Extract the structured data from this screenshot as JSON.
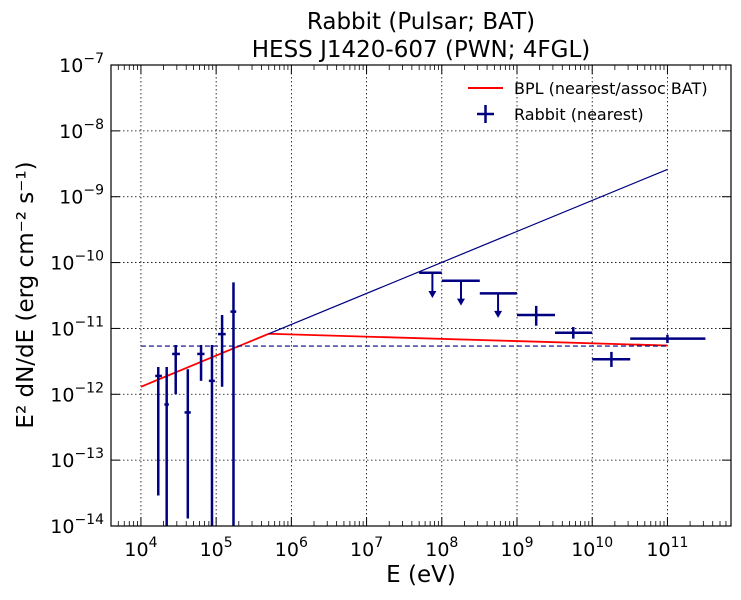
{
  "chart_data": {
    "type": "scatter",
    "title": [
      "Rabbit (Pulsar; BAT)",
      "HESS J1420-607 (PWN; 4FGL)"
    ],
    "xlabel": "E (eV)",
    "ylabel": "E² dN/dE (erg cm⁻² s⁻¹)",
    "x_scale": "log",
    "y_scale": "log",
    "xlim": [
      4000,
      700000000000
    ],
    "ylim": [
      1e-14,
      1e-07
    ],
    "x_ticks": [
      {
        "value": 10000,
        "base": "10",
        "exp": "4"
      },
      {
        "value": 100000,
        "base": "10",
        "exp": "5"
      },
      {
        "value": 1000000,
        "base": "10",
        "exp": "6"
      },
      {
        "value": 10000000,
        "base": "10",
        "exp": "7"
      },
      {
        "value": 100000000,
        "base": "10",
        "exp": "8"
      },
      {
        "value": 1000000000,
        "base": "10",
        "exp": "9"
      },
      {
        "value": 10000000000,
        "base": "10",
        "exp": "10"
      },
      {
        "value": 100000000000,
        "base": "10",
        "exp": "11"
      }
    ],
    "y_ticks": [
      {
        "value": 1e-14,
        "base": "10",
        "exp": "−14"
      },
      {
        "value": 1e-13,
        "base": "10",
        "exp": "−13"
      },
      {
        "value": 1e-12,
        "base": "10",
        "exp": "−12"
      },
      {
        "value": 1e-11,
        "base": "10",
        "exp": "−11"
      },
      {
        "value": 1e-10,
        "base": "10",
        "exp": "−10"
      },
      {
        "value": 1e-09,
        "base": "10",
        "exp": "−9"
      },
      {
        "value": 1e-08,
        "base": "10",
        "exp": "−8"
      },
      {
        "value": 1e-07,
        "base": "10",
        "exp": "−7"
      }
    ],
    "grid": true,
    "grid_style": "dotted",
    "legend_position": "top-right",
    "colors": {
      "bpl": "#ff0000",
      "points": "#000080",
      "powerlaw": "#000080"
    },
    "series": [
      {
        "name": "BPL (nearest/assoc BAT)",
        "kind": "line",
        "color": "#ff0000",
        "points": [
          {
            "x": 10000,
            "y": 1.3e-12
          },
          {
            "x": 500000,
            "y": 8.3e-12
          },
          {
            "x": 100000000000,
            "y": 5.5e-12
          }
        ]
      },
      {
        "name": "",
        "kind": "line",
        "color": "#000080",
        "points": [
          {
            "x": 500000,
            "y": 8.3e-12
          },
          {
            "x": 100000000000,
            "y": 2.6e-09
          }
        ]
      },
      {
        "name": "",
        "kind": "dashed-line",
        "color": "#000080",
        "points": [
          {
            "x": 10000,
            "y": 5.4e-12
          },
          {
            "x": 100000000000,
            "y": 5.4e-12
          }
        ]
      },
      {
        "name": "Rabbit (nearest)",
        "kind": "errorbar",
        "color": "#000080",
        "points": [
          {
            "x": 17000,
            "y": 1.9e-12,
            "xlo": 15500,
            "xhi": 19000,
            "ylo": 2.9e-14,
            "yhi": 2.6e-12
          },
          {
            "x": 22000,
            "y": 7e-13,
            "xlo": 20500,
            "xhi": 23500,
            "ylo": 1e-14,
            "yhi": 2.6e-12
          },
          {
            "x": 29000,
            "y": 4.1e-12,
            "xlo": 26000,
            "xhi": 33000,
            "ylo": 1e-12,
            "yhi": 5.6e-12
          },
          {
            "x": 42000,
            "y": 5.3e-13,
            "xlo": 38000,
            "xhi": 46000,
            "ylo": 1.3e-14,
            "yhi": 2.4e-12
          },
          {
            "x": 63000,
            "y": 4.1e-12,
            "xlo": 56000,
            "xhi": 70000,
            "ylo": 1.6e-12,
            "yhi": 5.6e-12
          },
          {
            "x": 88000,
            "y": 1.6e-12,
            "xlo": 80000,
            "xhi": 96000,
            "ylo": 1e-14,
            "yhi": 5.6e-12
          },
          {
            "x": 120000,
            "y": 8.2e-12,
            "xlo": 106000,
            "xhi": 134000,
            "ylo": 1.3e-12,
            "yhi": 1.6e-11
          },
          {
            "x": 170000,
            "y": 1.8e-11,
            "xlo": 155000,
            "xhi": 185000,
            "ylo": 1e-14,
            "yhi": 5e-11
          },
          {
            "x": 1800000000,
            "y": 1.6e-11,
            "xlo": 1000000000,
            "xhi": 3200000000,
            "ylo": 1.1e-11,
            "yhi": 2.2e-11
          },
          {
            "x": 5600000000,
            "y": 8.6e-12,
            "xlo": 3200000000,
            "xhi": 10000000000,
            "ylo": 7e-12,
            "yhi": 1.05e-11
          },
          {
            "x": 18000000000,
            "y": 3.4e-12,
            "xlo": 10000000000,
            "xhi": 32000000000,
            "ylo": 2.6e-12,
            "yhi": 4.4e-12
          },
          {
            "x": 100000000000,
            "y": 7e-12,
            "xlo": 32000000000,
            "xhi": 320000000000,
            "ylo": 6e-12,
            "yhi": 8e-12
          }
        ]
      },
      {
        "name": "",
        "kind": "upper-limit",
        "color": "#000080",
        "points": [
          {
            "x": 75000000,
            "y": 7e-11,
            "xlo": 50000000,
            "xhi": 100000000,
            "arrow_to": 3e-11
          },
          {
            "x": 180000000,
            "y": 5.3e-11,
            "xlo": 100000000,
            "xhi": 320000000,
            "arrow_to": 2.3e-11
          },
          {
            "x": 560000000,
            "y": 3.4e-11,
            "xlo": 320000000,
            "xhi": 1000000000,
            "arrow_to": 1.5e-11
          }
        ]
      }
    ]
  }
}
